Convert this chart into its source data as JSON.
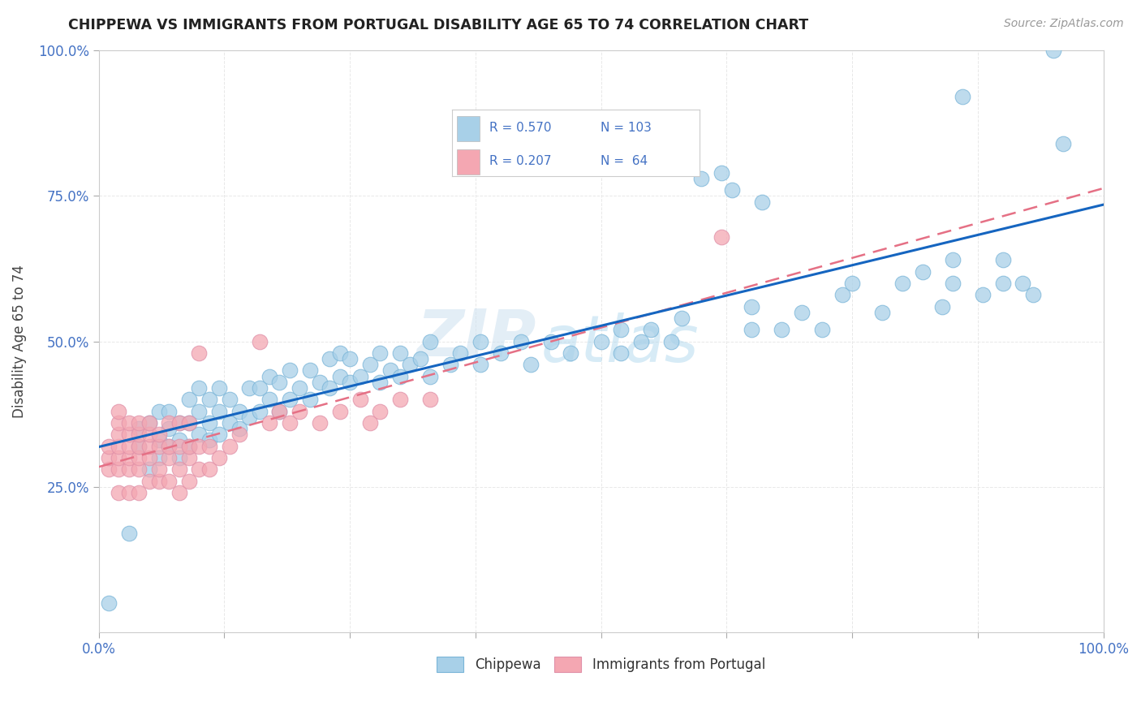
{
  "title": "CHIPPEWA VS IMMIGRANTS FROM PORTUGAL DISABILITY AGE 65 TO 74 CORRELATION CHART",
  "source_text": "Source: ZipAtlas.com",
  "ylabel": "Disability Age 65 to 74",
  "xlim": [
    0.0,
    1.0
  ],
  "ylim": [
    0.0,
    1.0
  ],
  "legend_entries": [
    {
      "label": "Chippewa",
      "color": "#a8d0e8",
      "R": 0.57,
      "N": 103
    },
    {
      "label": "Immigrants from Portugal",
      "color": "#f4a7b2",
      "R": 0.207,
      "N": 64
    }
  ],
  "watermark_part1": "ZIP",
  "watermark_part2": "atlas",
  "chippewa_points": [
    [
      0.01,
      0.05
    ],
    [
      0.03,
      0.17
    ],
    [
      0.04,
      0.32
    ],
    [
      0.04,
      0.35
    ],
    [
      0.05,
      0.28
    ],
    [
      0.05,
      0.36
    ],
    [
      0.06,
      0.3
    ],
    [
      0.06,
      0.33
    ],
    [
      0.06,
      0.38
    ],
    [
      0.07,
      0.32
    ],
    [
      0.07,
      0.35
    ],
    [
      0.07,
      0.38
    ],
    [
      0.08,
      0.3
    ],
    [
      0.08,
      0.33
    ],
    [
      0.08,
      0.36
    ],
    [
      0.09,
      0.32
    ],
    [
      0.09,
      0.36
    ],
    [
      0.09,
      0.4
    ],
    [
      0.1,
      0.34
    ],
    [
      0.1,
      0.38
    ],
    [
      0.1,
      0.42
    ],
    [
      0.11,
      0.33
    ],
    [
      0.11,
      0.36
    ],
    [
      0.11,
      0.4
    ],
    [
      0.12,
      0.34
    ],
    [
      0.12,
      0.38
    ],
    [
      0.12,
      0.42
    ],
    [
      0.13,
      0.36
    ],
    [
      0.13,
      0.4
    ],
    [
      0.14,
      0.35
    ],
    [
      0.14,
      0.38
    ],
    [
      0.15,
      0.37
    ],
    [
      0.15,
      0.42
    ],
    [
      0.16,
      0.38
    ],
    [
      0.16,
      0.42
    ],
    [
      0.17,
      0.4
    ],
    [
      0.17,
      0.44
    ],
    [
      0.18,
      0.38
    ],
    [
      0.18,
      0.43
    ],
    [
      0.19,
      0.4
    ],
    [
      0.19,
      0.45
    ],
    [
      0.2,
      0.42
    ],
    [
      0.21,
      0.4
    ],
    [
      0.21,
      0.45
    ],
    [
      0.22,
      0.43
    ],
    [
      0.23,
      0.42
    ],
    [
      0.23,
      0.47
    ],
    [
      0.24,
      0.44
    ],
    [
      0.24,
      0.48
    ],
    [
      0.25,
      0.43
    ],
    [
      0.25,
      0.47
    ],
    [
      0.26,
      0.44
    ],
    [
      0.27,
      0.46
    ],
    [
      0.28,
      0.43
    ],
    [
      0.28,
      0.48
    ],
    [
      0.29,
      0.45
    ],
    [
      0.3,
      0.44
    ],
    [
      0.3,
      0.48
    ],
    [
      0.31,
      0.46
    ],
    [
      0.32,
      0.47
    ],
    [
      0.33,
      0.44
    ],
    [
      0.33,
      0.5
    ],
    [
      0.35,
      0.46
    ],
    [
      0.36,
      0.48
    ],
    [
      0.38,
      0.46
    ],
    [
      0.38,
      0.5
    ],
    [
      0.4,
      0.48
    ],
    [
      0.42,
      0.5
    ],
    [
      0.43,
      0.46
    ],
    [
      0.45,
      0.5
    ],
    [
      0.47,
      0.48
    ],
    [
      0.5,
      0.5
    ],
    [
      0.52,
      0.48
    ],
    [
      0.52,
      0.52
    ],
    [
      0.54,
      0.5
    ],
    [
      0.55,
      0.52
    ],
    [
      0.57,
      0.5
    ],
    [
      0.58,
      0.54
    ],
    [
      0.6,
      0.78
    ],
    [
      0.62,
      0.79
    ],
    [
      0.63,
      0.76
    ],
    [
      0.65,
      0.52
    ],
    [
      0.65,
      0.56
    ],
    [
      0.66,
      0.74
    ],
    [
      0.68,
      0.52
    ],
    [
      0.7,
      0.55
    ],
    [
      0.72,
      0.52
    ],
    [
      0.74,
      0.58
    ],
    [
      0.75,
      0.6
    ],
    [
      0.78,
      0.55
    ],
    [
      0.8,
      0.6
    ],
    [
      0.82,
      0.62
    ],
    [
      0.84,
      0.56
    ],
    [
      0.85,
      0.6
    ],
    [
      0.85,
      0.64
    ],
    [
      0.86,
      0.92
    ],
    [
      0.88,
      0.58
    ],
    [
      0.9,
      0.6
    ],
    [
      0.9,
      0.64
    ],
    [
      0.92,
      0.6
    ],
    [
      0.93,
      0.58
    ],
    [
      0.95,
      1.0
    ],
    [
      0.96,
      0.84
    ]
  ],
  "portugal_points": [
    [
      0.01,
      0.28
    ],
    [
      0.01,
      0.3
    ],
    [
      0.01,
      0.32
    ],
    [
      0.02,
      0.24
    ],
    [
      0.02,
      0.28
    ],
    [
      0.02,
      0.3
    ],
    [
      0.02,
      0.32
    ],
    [
      0.02,
      0.34
    ],
    [
      0.02,
      0.36
    ],
    [
      0.02,
      0.38
    ],
    [
      0.03,
      0.24
    ],
    [
      0.03,
      0.28
    ],
    [
      0.03,
      0.3
    ],
    [
      0.03,
      0.32
    ],
    [
      0.03,
      0.34
    ],
    [
      0.03,
      0.36
    ],
    [
      0.04,
      0.24
    ],
    [
      0.04,
      0.28
    ],
    [
      0.04,
      0.3
    ],
    [
      0.04,
      0.32
    ],
    [
      0.04,
      0.34
    ],
    [
      0.04,
      0.36
    ],
    [
      0.05,
      0.26
    ],
    [
      0.05,
      0.3
    ],
    [
      0.05,
      0.32
    ],
    [
      0.05,
      0.34
    ],
    [
      0.05,
      0.36
    ],
    [
      0.06,
      0.26
    ],
    [
      0.06,
      0.28
    ],
    [
      0.06,
      0.32
    ],
    [
      0.06,
      0.34
    ],
    [
      0.07,
      0.26
    ],
    [
      0.07,
      0.3
    ],
    [
      0.07,
      0.32
    ],
    [
      0.07,
      0.36
    ],
    [
      0.08,
      0.24
    ],
    [
      0.08,
      0.28
    ],
    [
      0.08,
      0.32
    ],
    [
      0.08,
      0.36
    ],
    [
      0.09,
      0.26
    ],
    [
      0.09,
      0.3
    ],
    [
      0.09,
      0.32
    ],
    [
      0.09,
      0.36
    ],
    [
      0.1,
      0.28
    ],
    [
      0.1,
      0.32
    ],
    [
      0.1,
      0.48
    ],
    [
      0.11,
      0.28
    ],
    [
      0.11,
      0.32
    ],
    [
      0.12,
      0.3
    ],
    [
      0.13,
      0.32
    ],
    [
      0.14,
      0.34
    ],
    [
      0.16,
      0.5
    ],
    [
      0.17,
      0.36
    ],
    [
      0.18,
      0.38
    ],
    [
      0.19,
      0.36
    ],
    [
      0.2,
      0.38
    ],
    [
      0.22,
      0.36
    ],
    [
      0.24,
      0.38
    ],
    [
      0.26,
      0.4
    ],
    [
      0.27,
      0.36
    ],
    [
      0.28,
      0.38
    ],
    [
      0.3,
      0.4
    ],
    [
      0.33,
      0.4
    ],
    [
      0.62,
      0.68
    ]
  ],
  "chippewa_color": "#a8d0e8",
  "portugal_color": "#f4a7b2",
  "chippewa_line_color": "#1565C0",
  "portugal_line_color": "#e57085",
  "background_color": "#ffffff",
  "grid_color": "#e8e8e8",
  "title_color": "#222222",
  "axis_label_color": "#444444",
  "tick_label_color": "#4472c4",
  "legend_R_color": "#4472c4",
  "legend_N_color": "#4472c4"
}
